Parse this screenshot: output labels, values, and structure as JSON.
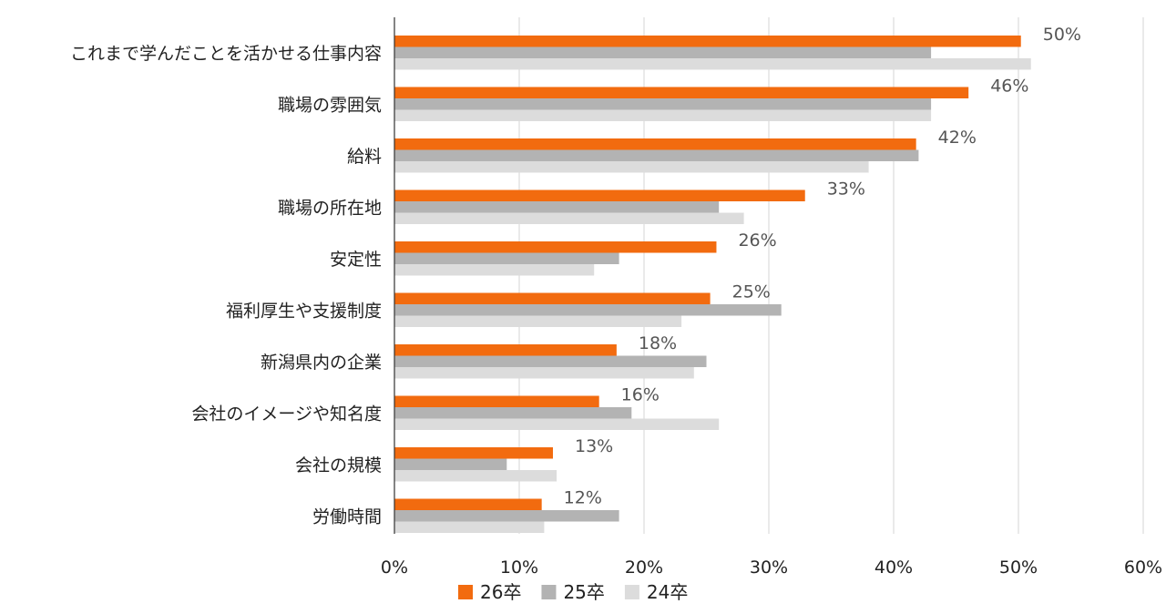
{
  "chart_data": {
    "type": "bar",
    "orientation": "horizontal",
    "title": "",
    "xlabel": "",
    "ylabel": "",
    "xlim": [
      0,
      60
    ],
    "x_ticks": [
      "0%",
      "10%",
      "20%",
      "30%",
      "40%",
      "50%",
      "60%"
    ],
    "grid": "vertical",
    "legend_position": "bottom",
    "categories": [
      "これまで学んだことを活かせる仕事内容",
      "職場の雰囲気",
      "給料",
      "職場の所在地",
      "安定性",
      "福利厚生や支援制度",
      "新潟県内の企業",
      "会社のイメージや知名度",
      "会社の規模",
      "労働時間"
    ],
    "series": [
      {
        "name": "26卒",
        "color": "#f26b0f",
        "values": [
          50.2,
          46.0,
          41.8,
          32.9,
          25.8,
          25.3,
          17.8,
          16.4,
          12.7,
          11.8
        ],
        "data_labels": [
          "50%",
          "46%",
          "42%",
          "33%",
          "26%",
          "25%",
          "18%",
          "16%",
          "13%",
          "12%"
        ]
      },
      {
        "name": "25卒",
        "color": "#b3b3b3",
        "values": [
          43.0,
          43.0,
          42.0,
          26.0,
          18.0,
          31.0,
          25.0,
          19.0,
          9.0,
          18.0
        ]
      },
      {
        "name": "24卒",
        "color": "#dcdcdc",
        "values": [
          51.0,
          43.0,
          38.0,
          28.0,
          16.0,
          23.0,
          24.0,
          26.0,
          13.0,
          12.0
        ]
      }
    ]
  }
}
